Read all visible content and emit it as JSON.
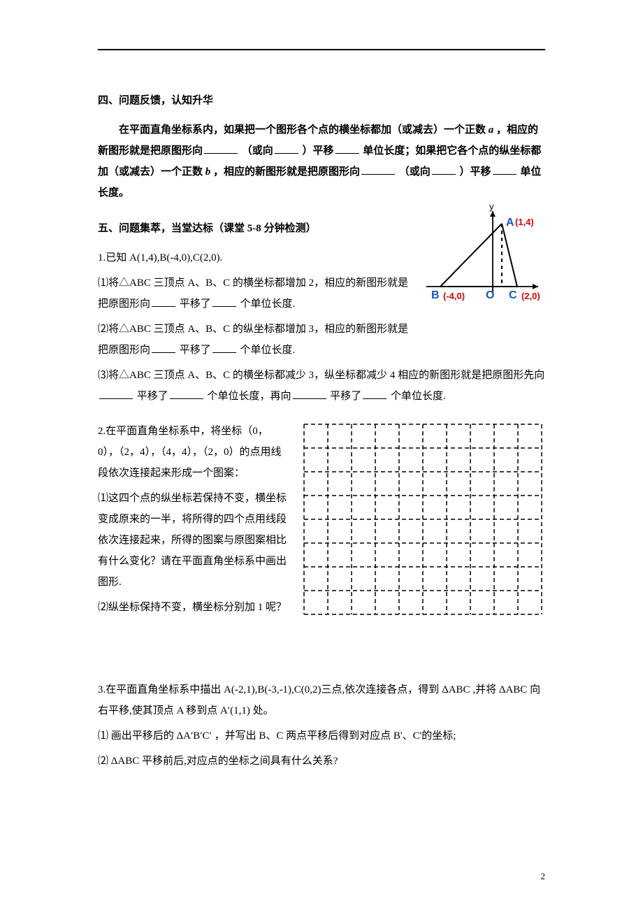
{
  "section4": {
    "heading": "四、问题反馈，认知升华",
    "para_parts": [
      "在平面直角坐标系内，如果把一个图形各个点的横坐标都加（或减去）一个正数",
      "a",
      "，相应的新图形就是把原图形向",
      "（或向",
      "）平移",
      "单位长度；如果把它各个点的纵坐标都加（或减去）一个正数",
      "b",
      "，相应的新图形就是把原图形向",
      "（或向",
      "）平移",
      "单位长度。"
    ]
  },
  "section5": {
    "heading": "五、问题集萃，当堂达标（课堂 5-8 分钟检测）"
  },
  "q1": {
    "given": "1.已知 A(1,4),B(-4,0),C(2,0).",
    "p1a": "⑴将△ABC 三顶点 A、B、C 的横坐标都增加 2，相应的新图形就是把原图形向",
    "p1b": "平移了",
    "p1c": "个单位长度.",
    "p2a": "⑵将△ABC 三顶点 A、B、C 的纵坐标都增加 3，相应的新图形就是把原图形向",
    "p2b": "平移了",
    "p2c": "个单位长度.",
    "p3a": "⑶将△ABC 三顶点 A、B、C 的横坐标都减少 3，纵坐标都减少 4 相应的新图形就是把原图形先向",
    "p3b": "平移了",
    "p3c": "个单位长度，再向",
    "p3d": "平移了",
    "p3e": "个单位长度."
  },
  "fig1": {
    "y_label": "y",
    "A_label": "A",
    "A_coord": "(1,4)",
    "B_label": "B",
    "B_coord": "(-4,0)",
    "O_label": "O",
    "C_label": "C",
    "C_coord": "(2,0)",
    "colors": {
      "axis": "#000000",
      "triangle": "#000000",
      "labels_bold": "#0b57d0",
      "coord_red": "#e60000"
    }
  },
  "q2": {
    "intro": "2.在平面直角坐标系中，将坐标（0，0），（2，4），（4，4），（2，0）的点用线段依次连接起来形成一个图案：",
    "p1": "⑴这四个点的纵坐标若保持不变，横坐标变成原来的一半，将所得的四个点用线段依次连接起来，所得的图案与原图案相比有什么变化？请在平面直角坐标系中画出图形.",
    "p2": "⑵纵坐标保持不变，横坐标分别加 1 呢？"
  },
  "grid": {
    "cols": 10,
    "rows": 8,
    "cell": 34,
    "stroke": "#000000",
    "dash": "6,4",
    "stroke_width": 1.5
  },
  "q3": {
    "line1a": "3.在平面直角坐标系中描出 A(-2,1),B(-3,-1),C(0,2)三点,依次连接各点，得到",
    "tri1": "ΔABC",
    "line1b": ",并将",
    "tri2": "ΔABC",
    "line1c": "向右平移,使其顶点 A 移到点",
    "Aprime": "A′(1,1)",
    "line1d": "处。",
    "p1a": "⑴ 画出平移后的",
    "tri3": "ΔA′B′C′",
    "p1b": "，并写出 B、C 两点平移后得到对应点 B'、C'的坐标;",
    "p2a": "⑵",
    "tri4": "ΔABC",
    "p2b": "平移前后,对应点的坐标之间具有什么关系?"
  },
  "page_number": "2"
}
